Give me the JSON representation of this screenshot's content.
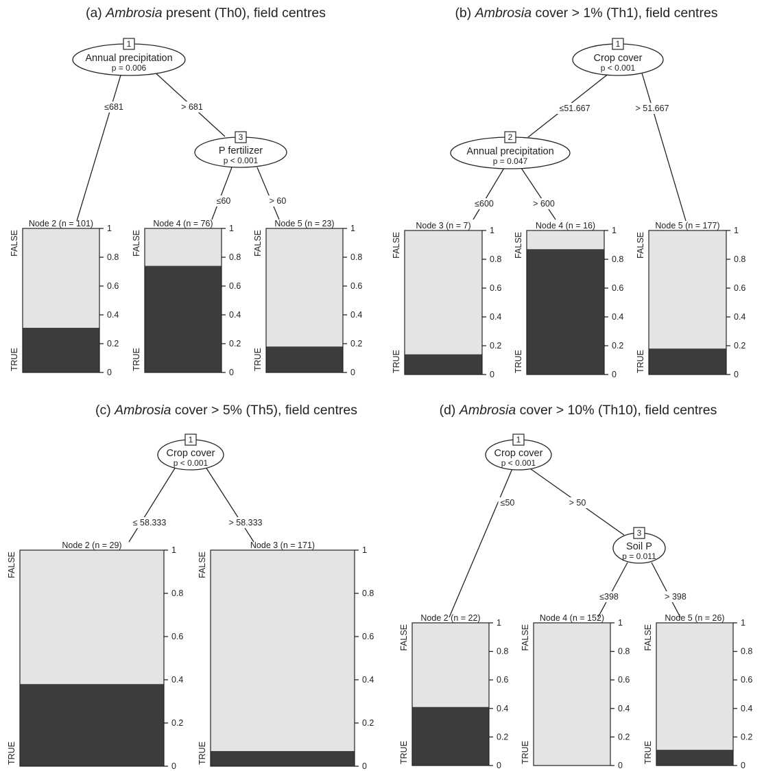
{
  "panels": [
    {
      "title_prefix": "(a) ",
      "title_italic": "Ambrosia",
      "title_suffix": " present (Th0), field centres",
      "splits": [
        {
          "id": "1",
          "variable": "Annual precipitation",
          "p": "p = 0.006"
        },
        {
          "id": "3",
          "variable": "P fertilizer",
          "p": "p < 0.001"
        }
      ],
      "edges": [
        "≤681",
        "> 681",
        "≤60",
        "> 60"
      ],
      "terminals": [
        {
          "label": "Node 2 (n = 101)",
          "true_fraction": 0.31
        },
        {
          "label": "Node 4 (n = 76)",
          "true_fraction": 0.74
        },
        {
          "label": "Node 5 (n = 23)",
          "true_fraction": 0.18
        }
      ]
    },
    {
      "title_prefix": "(b) ",
      "title_italic": "Ambrosia",
      "title_suffix": " cover > 1% (Th1), field centres",
      "splits": [
        {
          "id": "1",
          "variable": "Crop cover",
          "p": "p < 0.001"
        },
        {
          "id": "2",
          "variable": "Annual precipitation",
          "p": "p = 0.047"
        }
      ],
      "edges": [
        "≤51.667",
        "> 51.667",
        "≤600",
        "> 600"
      ],
      "terminals": [
        {
          "label": "Node 3 (n = 7)",
          "true_fraction": 0.14
        },
        {
          "label": "Node 4 (n = 16)",
          "true_fraction": 0.87
        },
        {
          "label": "Node 5 (n = 177)",
          "true_fraction": 0.18
        }
      ]
    },
    {
      "title_prefix": "(c) ",
      "title_italic": "Ambrosia",
      "title_suffix": " cover > 5% (Th5), field centres",
      "splits": [
        {
          "id": "1",
          "variable": "Crop cover",
          "p": "p < 0.001"
        }
      ],
      "edges": [
        "≤ 58.333",
        "> 58.333"
      ],
      "terminals": [
        {
          "label": "Node 2 (n = 29)",
          "true_fraction": 0.38
        },
        {
          "label": "Node 3 (n = 171)",
          "true_fraction": 0.07
        }
      ]
    },
    {
      "title_prefix": "(d) ",
      "title_italic": "Ambrosia",
      "title_suffix": " cover > 10% (Th10), field centres",
      "splits": [
        {
          "id": "1",
          "variable": "Crop cover",
          "p": "p < 0.001"
        },
        {
          "id": "3",
          "variable": "Soil P",
          "p": "p = 0.011"
        }
      ],
      "edges": [
        "≤50",
        "> 50",
        "≤398",
        "> 398"
      ],
      "terminals": [
        {
          "label": "Node 2 (n = 22)",
          "true_fraction": 0.41
        },
        {
          "label": "Node 4 (n = 152)",
          "true_fraction": 0.0
        },
        {
          "label": "Node 5 (n = 26)",
          "true_fraction": 0.11
        }
      ]
    }
  ],
  "class_labels": {
    "top": "FALSE",
    "bottom": "TRUE"
  },
  "y_ticks": [
    "0",
    "0.2",
    "0.4",
    "0.6",
    "0.8",
    "1"
  ],
  "colors": {
    "true_bar": "#3c3c3c",
    "false_bar": "#e4e4e4",
    "line": "#222222"
  }
}
